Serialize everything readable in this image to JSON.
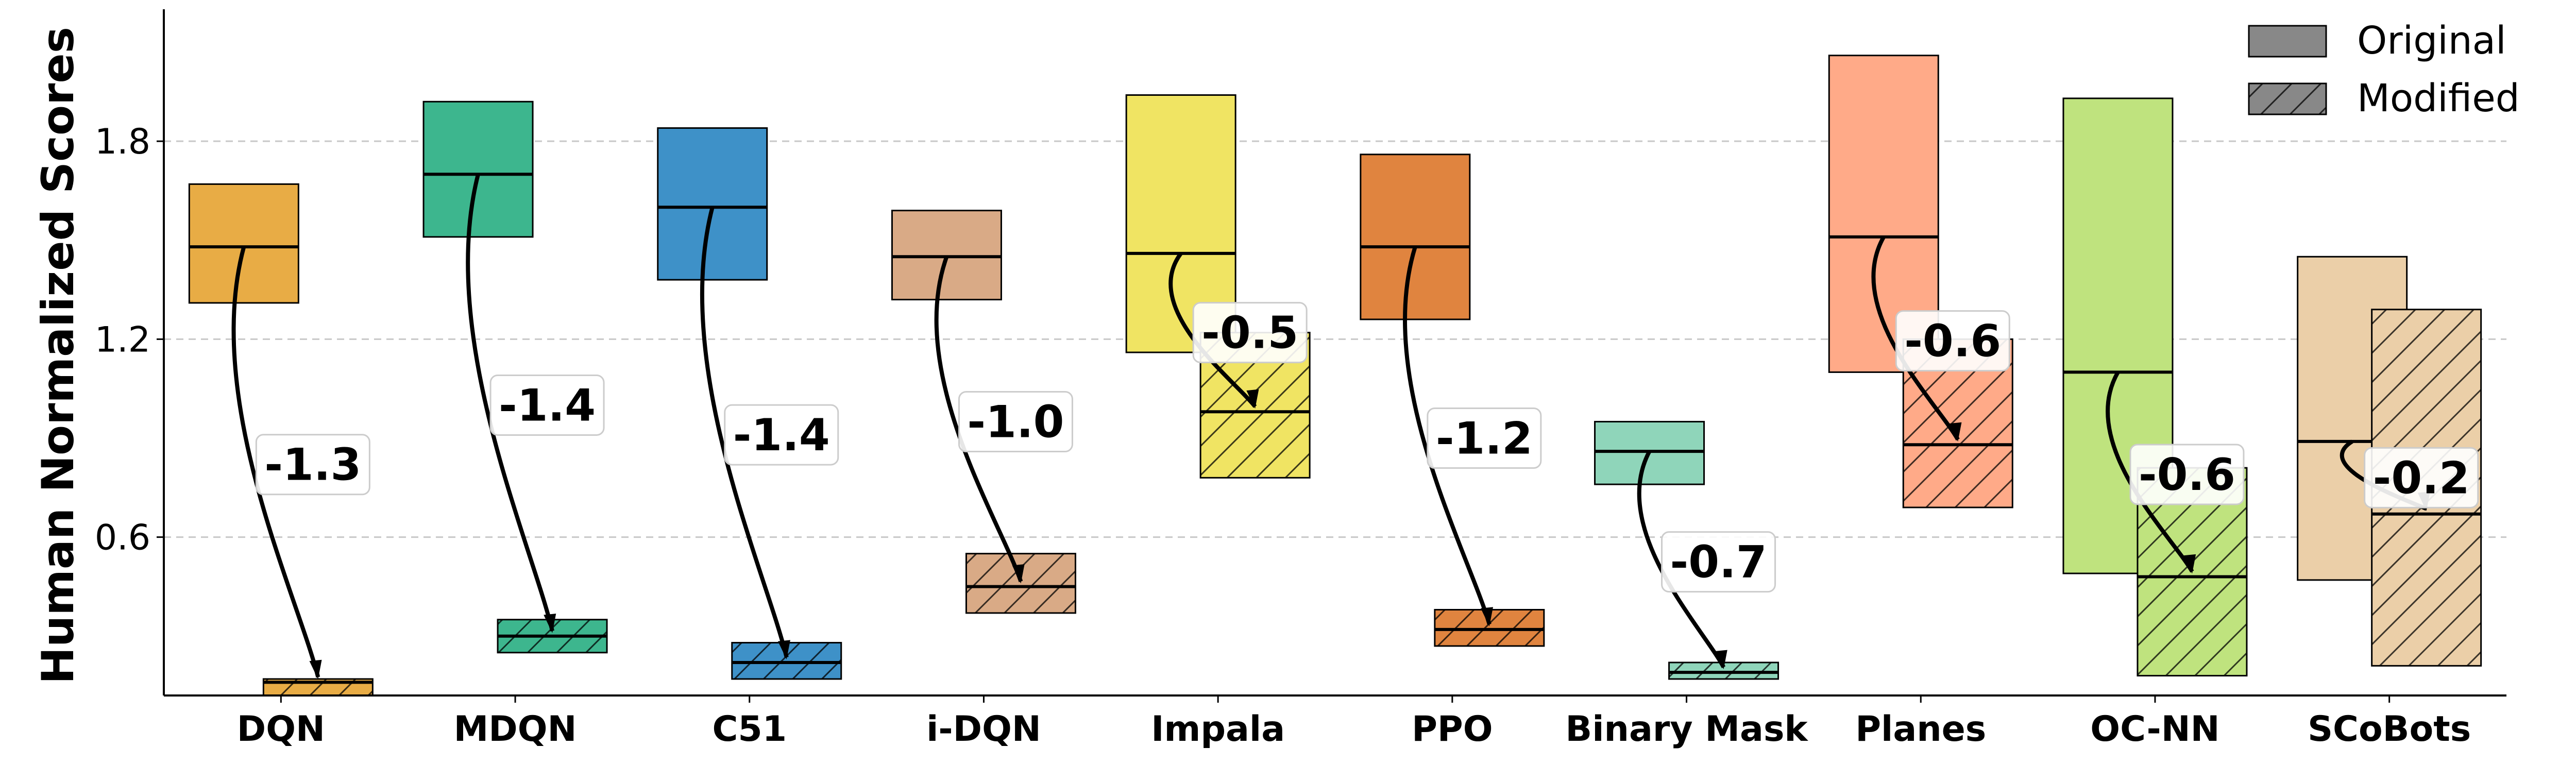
{
  "chart_data": {
    "type": "box",
    "title": "",
    "xlabel": "",
    "ylabel": "Human Normalized Scores",
    "ylim": [
      0.12,
      2.2
    ],
    "yticks": [
      "0.6",
      "1.2",
      "1.8"
    ],
    "grid": "horizontal dashed",
    "legend": {
      "position": "top-right",
      "entries": [
        "Original",
        "Modified"
      ]
    },
    "categories": [
      "DQN",
      "MDQN",
      "C51",
      "i-DQN",
      "Impala",
      "PPO",
      "Binary Mask",
      "Planes",
      "OC-NN",
      "SCoBots"
    ],
    "colors": [
      "#E8AC45",
      "#3DB68E",
      "#3E91C8",
      "#D9AA86",
      "#F0E463",
      "#E0843F",
      "#8FD5BA",
      "#FFAA88",
      "#BFE37E",
      "#EBCFA8"
    ],
    "series": [
      {
        "name": "Original",
        "low": [
          1.31,
          1.51,
          1.38,
          1.32,
          1.16,
          1.26,
          0.76,
          1.1,
          0.49,
          0.47
        ],
        "median": [
          1.48,
          1.7,
          1.6,
          1.45,
          1.46,
          1.48,
          0.86,
          1.51,
          1.1,
          0.89
        ],
        "high": [
          1.67,
          1.92,
          1.84,
          1.59,
          1.94,
          1.76,
          0.95,
          2.06,
          1.93,
          1.45
        ]
      },
      {
        "name": "Modified",
        "low": [
          0.12,
          0.25,
          0.17,
          0.37,
          0.78,
          0.27,
          0.17,
          0.69,
          0.18,
          0.21
        ],
        "median": [
          0.16,
          0.3,
          0.22,
          0.45,
          0.98,
          0.32,
          0.19,
          0.88,
          0.48,
          0.67
        ],
        "high": [
          0.17,
          0.35,
          0.28,
          0.55,
          1.22,
          0.38,
          0.22,
          1.2,
          0.81,
          1.29
        ]
      }
    ],
    "annotations": [
      "-1.3",
      "-1.4",
      "-1.4",
      "-1.0",
      "-0.5",
      "-1.2",
      "-0.7",
      "-0.6",
      "-0.6",
      "-0.2"
    ]
  }
}
